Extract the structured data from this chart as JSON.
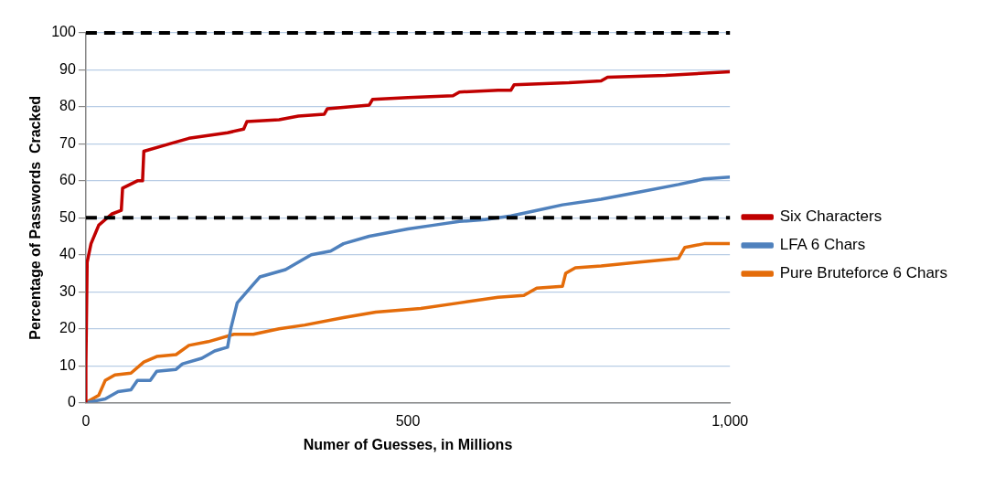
{
  "chart_data": {
    "type": "line",
    "xlabel": "Numer of Guesses, in Millions",
    "ylabel": "Percentage of Passwords  Cracked",
    "xlim": [
      0,
      1000
    ],
    "xticks": [
      0,
      500,
      {
        "value": 1000,
        "label": "1,000"
      }
    ],
    "ylim": [
      0,
      100
    ],
    "yticks": [
      0,
      10,
      20,
      30,
      40,
      50,
      60,
      70,
      80,
      90,
      100
    ],
    "grid": "y",
    "legend": "right",
    "marker": "none",
    "line_style": "solid",
    "ref_lines": [
      {
        "axis": "y",
        "value": 100,
        "color": "#000000",
        "line_style": "dashed"
      },
      {
        "axis": "y",
        "value": 50,
        "color": "#000000",
        "line_style": "dashed"
      }
    ],
    "series": [
      {
        "name": "Six Characters",
        "color": "#c00000",
        "x": [
          0,
          0,
          2,
          8,
          20,
          40,
          55,
          57,
          80,
          88,
          90,
          130,
          160,
          220,
          245,
          250,
          300,
          330,
          370,
          375,
          440,
          445,
          500,
          570,
          580,
          640,
          660,
          665,
          750,
          800,
          810,
          900,
          1000
        ],
        "values": [
          0,
          10,
          38,
          43,
          48,
          51,
          52,
          58,
          60,
          60,
          68,
          70,
          71.5,
          73,
          74,
          76,
          76.5,
          77.5,
          78,
          79.5,
          80.5,
          82,
          82.5,
          83,
          84,
          84.5,
          84.5,
          86,
          86.5,
          87,
          88,
          88.5,
          89.5
        ]
      },
      {
        "name": "LFA 6 Chars",
        "color": "#4f81bd",
        "x": [
          0,
          30,
          50,
          70,
          80,
          100,
          110,
          140,
          150,
          180,
          200,
          220,
          225,
          235,
          260,
          270,
          310,
          340,
          350,
          380,
          400,
          440,
          470,
          500,
          540,
          580,
          620,
          660,
          700,
          740,
          800,
          860,
          920,
          960,
          1000
        ],
        "values": [
          0,
          1,
          3,
          3.5,
          6,
          6,
          8.5,
          9,
          10.5,
          12,
          14,
          15,
          20,
          27,
          32,
          34,
          36,
          39,
          40,
          41,
          43,
          45,
          46,
          47,
          48,
          49,
          49.5,
          50.5,
          52,
          53.5,
          55,
          57,
          59,
          60.5,
          61
        ]
      },
      {
        "name": "Pure Bruteforce 6 Chars",
        "color": "#e46c0a",
        "x": [
          0,
          20,
          30,
          45,
          70,
          90,
          110,
          140,
          160,
          190,
          230,
          260,
          300,
          340,
          400,
          450,
          520,
          580,
          640,
          680,
          700,
          740,
          745,
          760,
          800,
          860,
          920,
          930,
          960,
          1000
        ],
        "values": [
          0,
          2,
          6,
          7.5,
          8,
          11,
          12.5,
          13,
          15.5,
          16.5,
          18.5,
          18.5,
          20,
          21,
          23,
          24.5,
          25.5,
          27,
          28.5,
          29,
          31,
          31.5,
          35,
          36.5,
          37,
          38,
          39,
          42,
          43,
          43
        ]
      }
    ]
  }
}
